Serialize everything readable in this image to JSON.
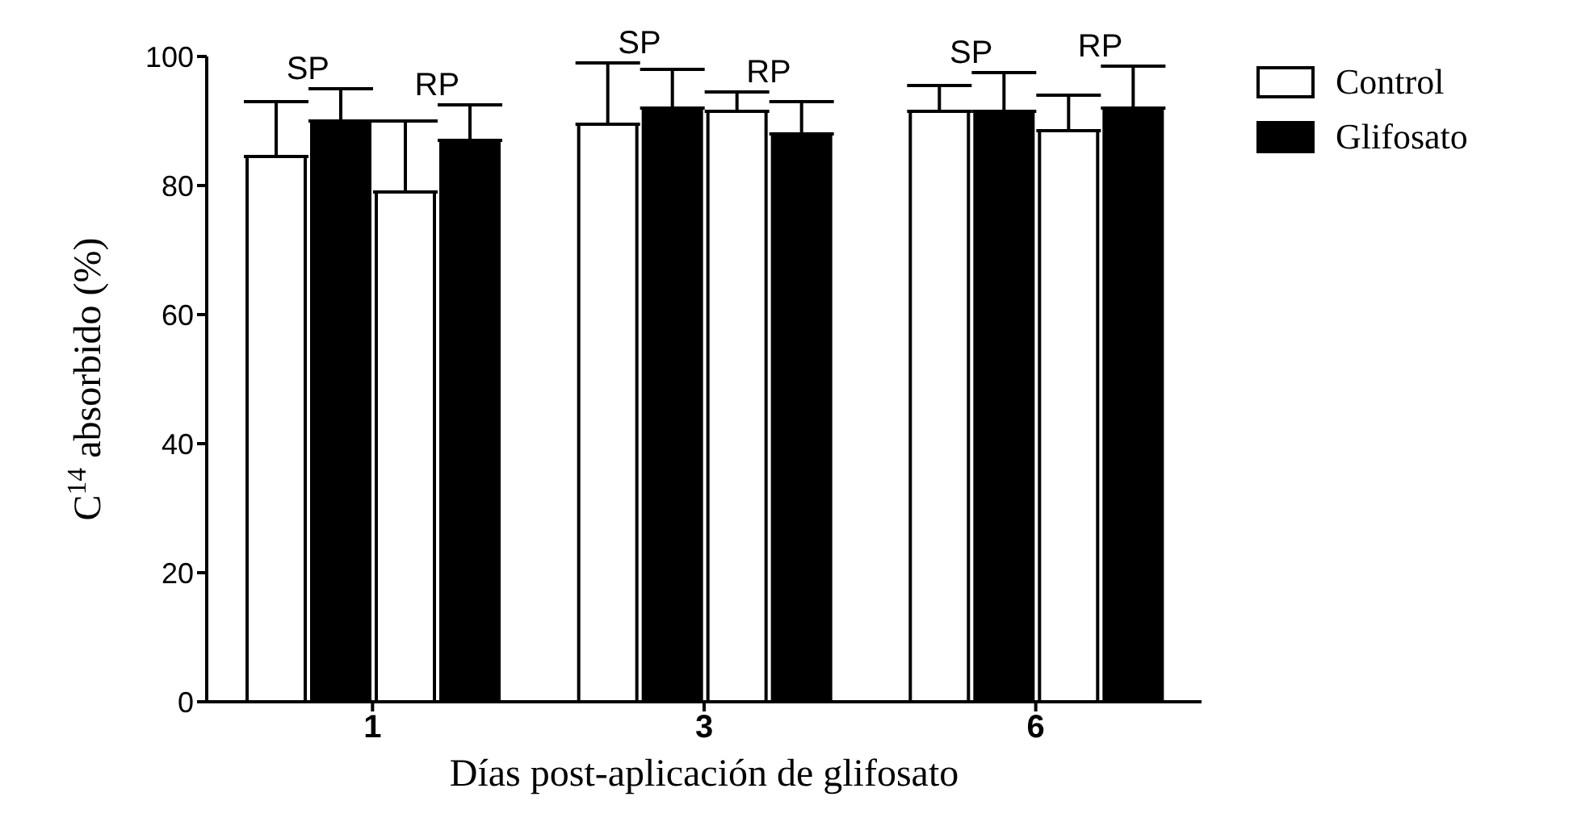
{
  "chart_data": {
    "type": "bar",
    "xlabel": "Días post-aplicación de glifosato",
    "ylabel": "C$^{14}$ absorbido (%)",
    "categories": [
      "1",
      "3",
      "6"
    ],
    "series": [
      {
        "name": "Control",
        "color": "#ffffff",
        "values": [
          84.5,
          89.5,
          91.5
        ],
        "errors": [
          [
            84.5,
            93
          ],
          [
            89.5,
            99
          ],
          [
            91.5,
            95.5
          ]
        ]
      },
      {
        "name": "Glifosato",
        "color": "#000000",
        "values": [
          90,
          92,
          91.5
        ],
        "errors": [
          [
            90,
            95
          ],
          [
            92,
            98
          ],
          [
            91.5,
            97.5
          ]
        ]
      },
      {
        "color": "#ffffff",
        "values": [
          79,
          91.5,
          88.5
        ],
        "errors": [
          [
            79,
            90
          ],
          [
            91.5,
            94.5
          ],
          [
            88.5,
            94
          ]
        ]
      },
      {
        "color": "#000000",
        "values": [
          87,
          88,
          92
        ],
        "errors": [
          [
            87,
            92.5
          ],
          [
            88,
            93
          ],
          [
            92,
            98.5
          ]
        ]
      }
    ],
    "annotations": [
      "SP",
      "RP",
      "SP",
      "RP",
      "SP",
      "RP"
    ],
    "ylim": [
      0,
      100
    ],
    "yticks": [
      0,
      20,
      40,
      60,
      80,
      100
    ],
    "legend": "right"
  }
}
